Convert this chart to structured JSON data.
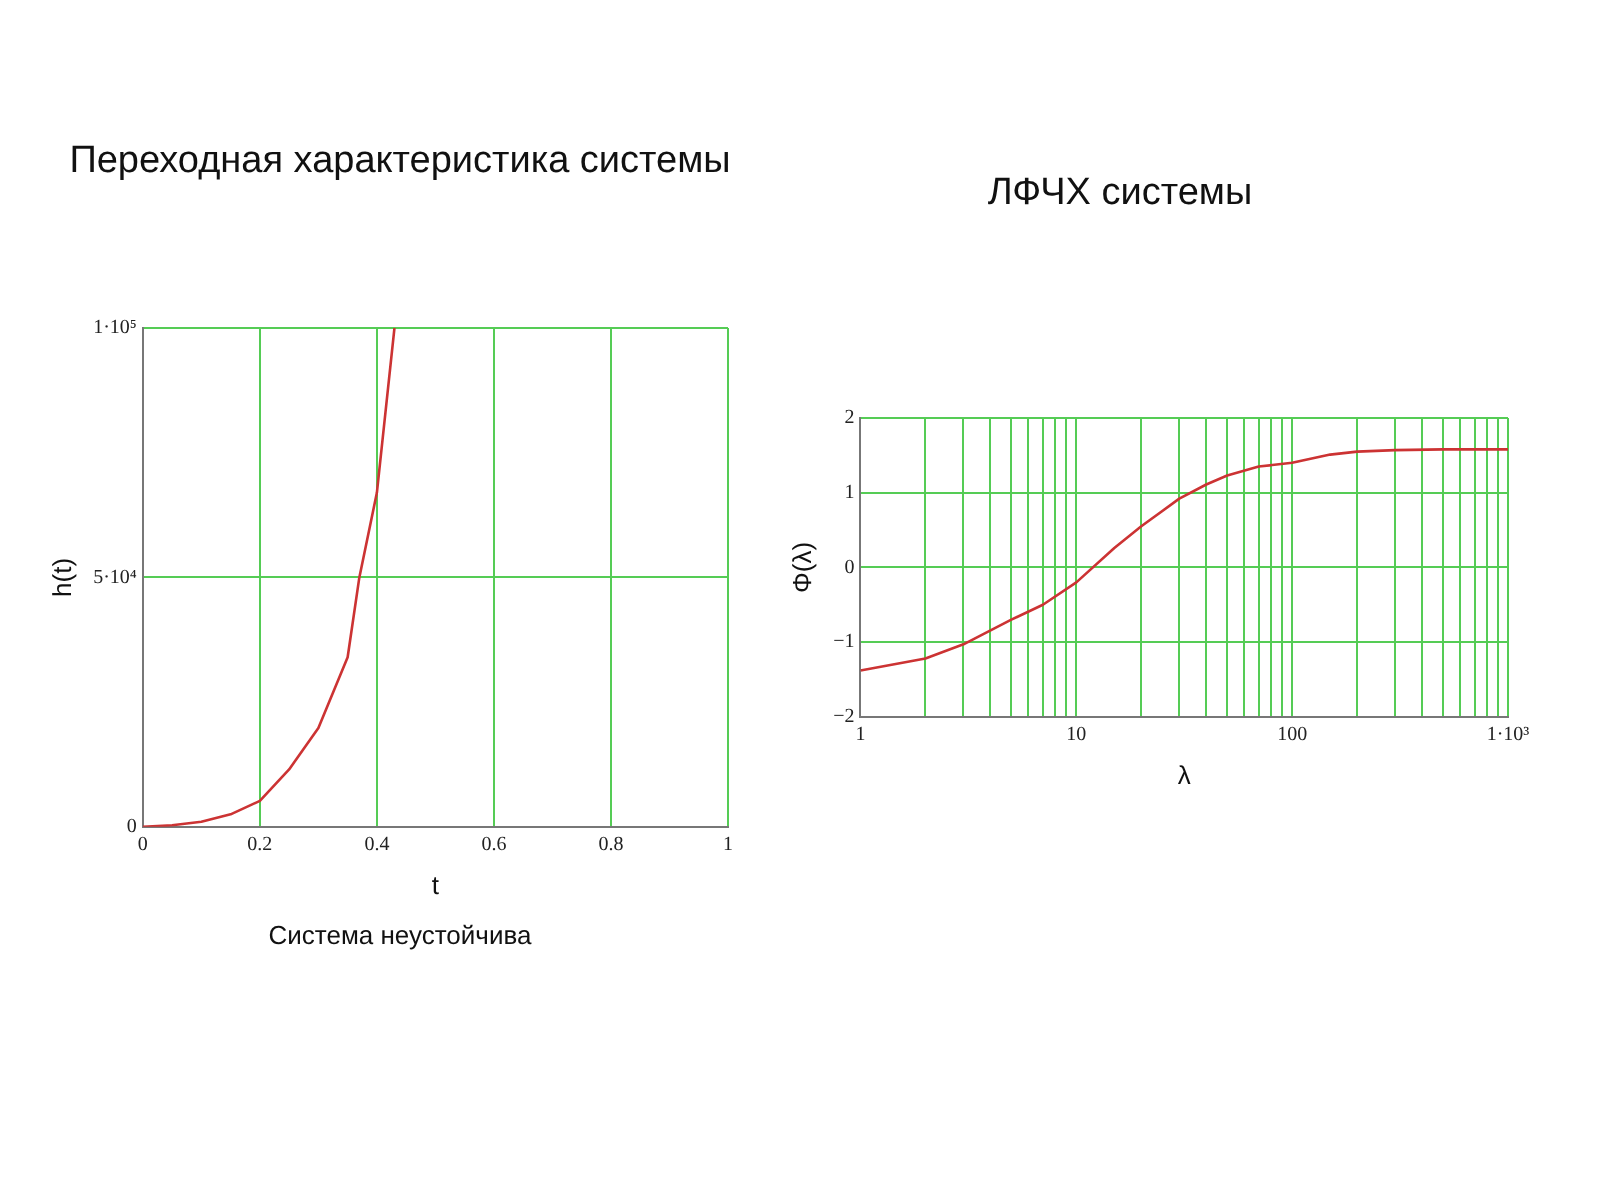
{
  "chart_data": [
    {
      "type": "line",
      "title": "Переходная характеристика системы",
      "xlabel": "t",
      "ylabel": "h(t)",
      "annotations": [
        "Система неустойчива"
      ],
      "x": [
        0,
        0.05,
        0.1,
        0.15,
        0.2,
        0.25,
        0.3,
        0.35,
        0.37,
        0.4,
        0.43
      ],
      "series": [
        {
          "color": "#cc3333",
          "values": [
            0,
            300,
            1000,
            2500,
            5200,
            11500,
            19800,
            34000,
            50000,
            67000,
            100000
          ]
        }
      ],
      "xlim": [
        0,
        1
      ],
      "xticks": [
        0,
        0.2,
        0.4,
        0.6,
        0.8,
        1
      ],
      "ylim": [
        0,
        100000
      ],
      "yticks": [
        0,
        {
          "value": 50000,
          "label": "5·10⁴"
        },
        {
          "value": 100000,
          "label": "1·10⁵"
        }
      ],
      "grid": true,
      "legend": false,
      "marker": "none",
      "line_style": "solid"
    },
    {
      "type": "line",
      "title": "ЛФЧХ системы",
      "xlabel": "λ",
      "ylabel": "Φ(λ)",
      "log": "x",
      "x": [
        1,
        2,
        3,
        5,
        7,
        10,
        15,
        20,
        30,
        40,
        50,
        70,
        100,
        150,
        200,
        300,
        500,
        1000
      ],
      "series": [
        {
          "color": "#cc3333",
          "values": [
            -1.38,
            -1.22,
            -1.03,
            -0.7,
            -0.5,
            -0.2,
            0.26,
            0.55,
            0.92,
            1.11,
            1.23,
            1.35,
            1.4,
            1.51,
            1.55,
            1.57,
            1.58,
            1.58
          ]
        }
      ],
      "xlim": [
        1,
        1000
      ],
      "xticks": [
        1,
        {
          "value": 2,
          "label": null
        },
        {
          "value": 3,
          "label": null
        },
        {
          "value": 4,
          "label": null
        },
        {
          "value": 5,
          "label": null
        },
        {
          "value": 6,
          "label": null
        },
        {
          "value": 7,
          "label": null
        },
        {
          "value": 8,
          "label": null
        },
        {
          "value": 9,
          "label": null
        },
        10,
        {
          "value": 20,
          "label": null
        },
        {
          "value": 30,
          "label": null
        },
        {
          "value": 40,
          "label": null
        },
        {
          "value": 50,
          "label": null
        },
        {
          "value": 60,
          "label": null
        },
        {
          "value": 70,
          "label": null
        },
        {
          "value": 80,
          "label": null
        },
        {
          "value": 90,
          "label": null
        },
        100,
        {
          "value": 200,
          "label": null
        },
        {
          "value": 300,
          "label": null
        },
        {
          "value": 400,
          "label": null
        },
        {
          "value": 500,
          "label": null
        },
        {
          "value": 600,
          "label": null
        },
        {
          "value": 700,
          "label": null
        },
        {
          "value": 800,
          "label": null
        },
        {
          "value": 900,
          "label": null
        },
        {
          "value": 1000,
          "label": "1·10³"
        }
      ],
      "ylim": [
        -2,
        2
      ],
      "yticks": [
        {
          "value": -2,
          "label": "−2"
        },
        {
          "value": -1,
          "label": "−1"
        },
        0,
        1,
        2
      ],
      "grid": true,
      "legend": false,
      "marker": "none",
      "line_style": "solid"
    }
  ]
}
